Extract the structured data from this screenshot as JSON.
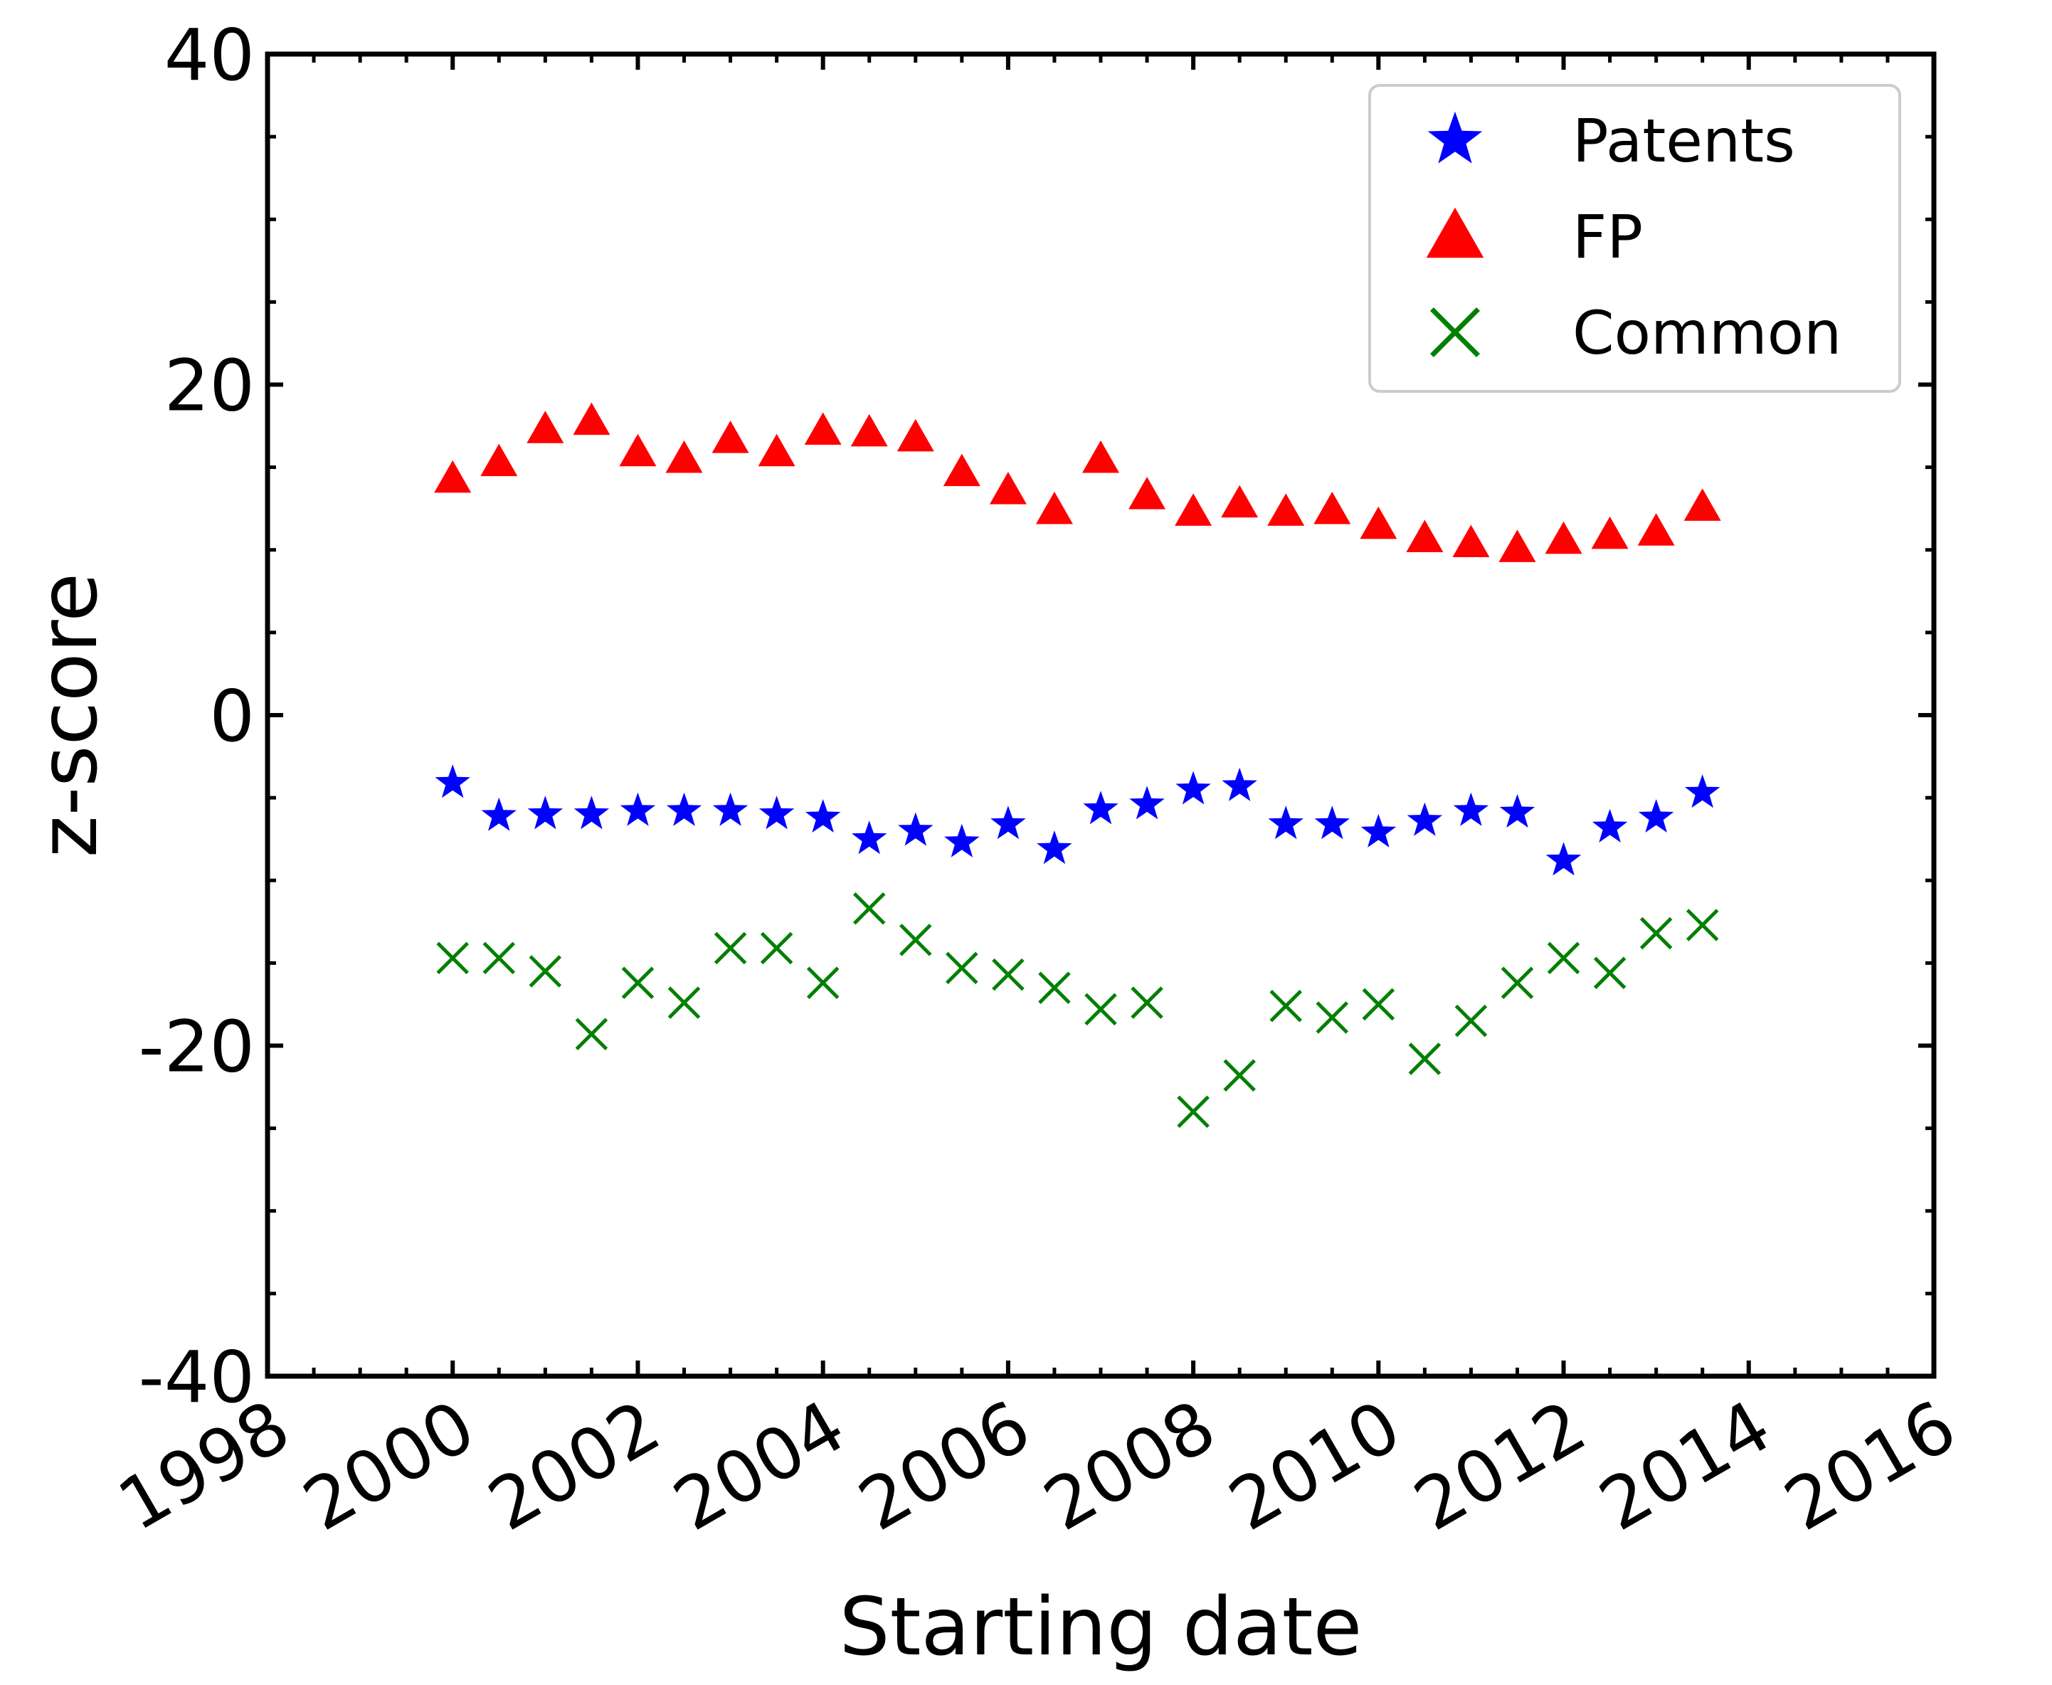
{
  "chart_data": {
    "type": "scatter",
    "title": "",
    "xlabel": "Starting date",
    "ylabel": "z-score",
    "xlim": [
      1998,
      2016
    ],
    "ylim": [
      -40,
      40
    ],
    "x_ticks": [
      1998,
      2000,
      2002,
      2004,
      2006,
      2008,
      2010,
      2012,
      2014,
      2016
    ],
    "x_tick_labels": [
      "1998",
      "2000",
      "2002",
      "2004",
      "2006",
      "2008",
      "2010",
      "2012",
      "2014",
      "2016"
    ],
    "y_ticks": [
      -40,
      -20,
      0,
      20,
      40
    ],
    "y_tick_labels": [
      "-40",
      "-20",
      "0",
      "20",
      "40"
    ],
    "grid": false,
    "legend_position": "top-right",
    "x": [
      2000.0,
      2000.5,
      2001.0,
      2001.5,
      2002.0,
      2002.5,
      2003.0,
      2003.5,
      2004.0,
      2004.5,
      2005.0,
      2005.5,
      2006.0,
      2006.5,
      2007.0,
      2007.5,
      2008.0,
      2008.5,
      2009.0,
      2009.5,
      2010.0,
      2010.5,
      2011.0,
      2011.5,
      2012.0,
      2012.5,
      2013.0,
      2013.5
    ],
    "series": [
      {
        "name": "Patents",
        "marker": "star",
        "color": "#0000ff",
        "values": [
          -4.1,
          -6.1,
          -6.0,
          -6.0,
          -5.8,
          -5.8,
          -5.8,
          -6.0,
          -6.2,
          -7.5,
          -7.0,
          -7.7,
          -6.6,
          -8.1,
          -5.7,
          -5.4,
          -4.5,
          -4.3,
          -6.6,
          -6.6,
          -7.1,
          -6.4,
          -5.8,
          -5.9,
          -8.8,
          -6.8,
          -6.2,
          -4.7
        ]
      },
      {
        "name": "FP",
        "marker": "triangle",
        "color": "#ff0000",
        "values": [
          14.3,
          15.3,
          17.3,
          17.8,
          15.9,
          15.5,
          16.7,
          15.9,
          17.2,
          17.1,
          16.8,
          14.7,
          13.6,
          12.4,
          15.5,
          13.3,
          12.3,
          12.8,
          12.3,
          12.4,
          11.5,
          10.7,
          10.4,
          10.1,
          10.6,
          10.9,
          11.1,
          12.6
        ]
      },
      {
        "name": "Common",
        "marker": "x",
        "color": "#008000",
        "values": [
          -14.7,
          -14.7,
          -15.5,
          -19.3,
          -16.2,
          -17.4,
          -14.1,
          -14.1,
          -16.2,
          -11.7,
          -13.6,
          -15.3,
          -15.7,
          -16.5,
          -17.8,
          -17.4,
          -24.0,
          -21.8,
          -17.6,
          -18.3,
          -17.5,
          -20.8,
          -18.5,
          -16.2,
          -14.7,
          -15.6,
          -13.2,
          -12.7
        ]
      }
    ]
  }
}
